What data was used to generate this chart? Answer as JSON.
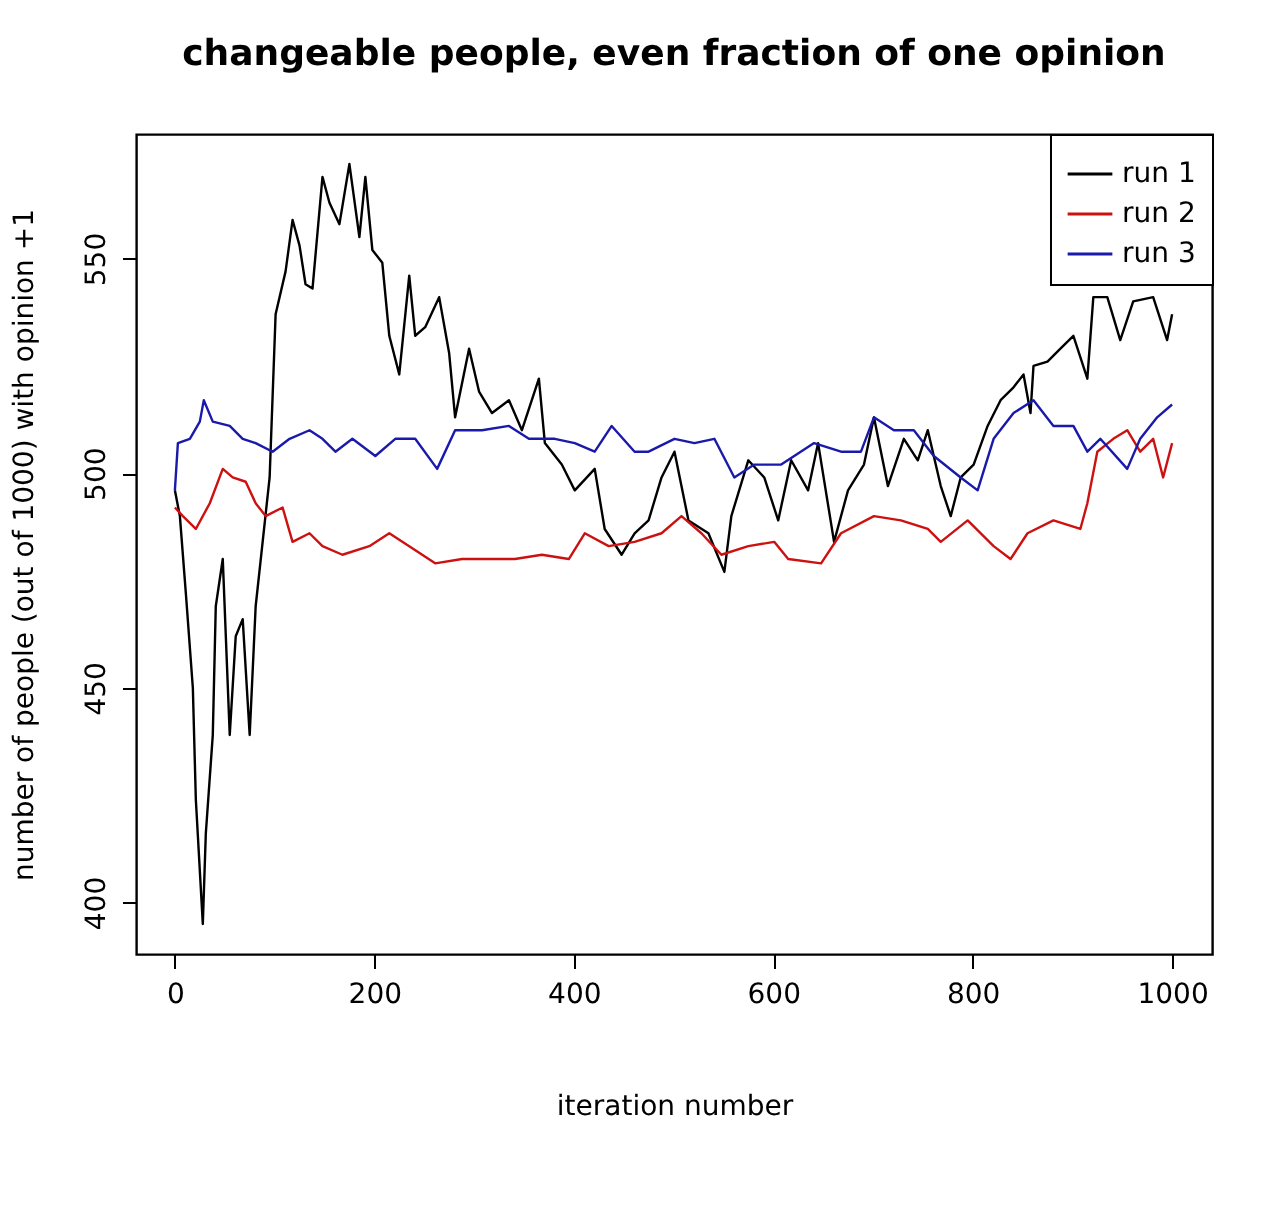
{
  "chart_data": {
    "type": "line",
    "title": "changeable people, even fraction of one opinion",
    "xlabel": "iteration number",
    "ylabel": "number of people (out of 1000) with opinion +1",
    "xlim": [
      -39,
      1040
    ],
    "ylim": [
      388,
      579
    ],
    "xticks": [
      0,
      200,
      400,
      600,
      800,
      1000
    ],
    "yticks": [
      400,
      450,
      500,
      550
    ],
    "grid": false,
    "legend": "top right",
    "marker": "none",
    "line_style": "solid",
    "series": [
      {
        "name": "run 1",
        "color": "#000000",
        "x": [
          0,
          5,
          11,
          18,
          21,
          28,
          31,
          38,
          41,
          48,
          55,
          61,
          68,
          75,
          81,
          88,
          95,
          101,
          111,
          118,
          125,
          131,
          138,
          148,
          155,
          165,
          175,
          185,
          191,
          198,
          208,
          215,
          225,
          235,
          241,
          251,
          265,
          275,
          281,
          295,
          305,
          318,
          335,
          348,
          365,
          371,
          388,
          401,
          421,
          431,
          448,
          461,
          475,
          488,
          501,
          515,
          535,
          551,
          558,
          575,
          591,
          605,
          618,
          635,
          645,
          661,
          675,
          691,
          701,
          715,
          731,
          745,
          755,
          768,
          778,
          788,
          801,
          815,
          828,
          841,
          851,
          858,
          861,
          875,
          888,
          901,
          915,
          921,
          935,
          948,
          961,
          981,
          995,
          1000
        ],
        "values": [
          496,
          490,
          472,
          450,
          424,
          395,
          416,
          439,
          469,
          480,
          439,
          462,
          466,
          439,
          469,
          484,
          499,
          537,
          547,
          559,
          553,
          544,
          543,
          569,
          563,
          558,
          572,
          555,
          569,
          552,
          549,
          532,
          523,
          546,
          532,
          534,
          541,
          528,
          513,
          529,
          519,
          514,
          517,
          510,
          522,
          507,
          502,
          496,
          501,
          487,
          481,
          486,
          489,
          499,
          505,
          489,
          486,
          477,
          490,
          503,
          499,
          489,
          503,
          496,
          507,
          484,
          496,
          502,
          513,
          497,
          508,
          503,
          510,
          497,
          490,
          499,
          502,
          511,
          517,
          520,
          523,
          514,
          525,
          526,
          529,
          532,
          522,
          541,
          541,
          531,
          540,
          541,
          531,
          537
        ]
      },
      {
        "name": "run 2",
        "color": "#cc1111",
        "x": [
          0,
          8,
          21,
          35,
          48,
          58,
          71,
          81,
          91,
          108,
          118,
          135,
          148,
          168,
          195,
          215,
          235,
          261,
          288,
          315,
          341,
          368,
          395,
          411,
          435,
          461,
          488,
          508,
          528,
          548,
          575,
          601,
          615,
          648,
          668,
          701,
          728,
          755,
          768,
          795,
          821,
          838,
          855,
          881,
          908,
          915,
          925,
          941,
          955,
          968,
          981,
          991,
          1000
        ],
        "values": [
          492,
          490,
          487,
          493,
          501,
          499,
          498,
          493,
          490,
          492,
          484,
          486,
          483,
          481,
          483,
          486,
          483,
          479,
          480,
          480,
          480,
          481,
          480,
          486,
          483,
          484,
          486,
          490,
          486,
          481,
          483,
          484,
          480,
          479,
          486,
          490,
          489,
          487,
          484,
          489,
          483,
          480,
          486,
          489,
          487,
          493,
          505,
          508,
          510,
          505,
          508,
          499,
          507
        ]
      },
      {
        "name": "run 3",
        "color": "#1a1aaa",
        "x": [
          0,
          3,
          15,
          25,
          29,
          38,
          55,
          68,
          81,
          98,
          115,
          135,
          148,
          161,
          178,
          201,
          221,
          241,
          263,
          281,
          308,
          335,
          355,
          381,
          401,
          421,
          438,
          461,
          475,
          501,
          521,
          541,
          561,
          581,
          608,
          641,
          668,
          688,
          701,
          721,
          741,
          761,
          788,
          805,
          821,
          841,
          861,
          881,
          901,
          915,
          928,
          955,
          968,
          985,
          1000
        ],
        "values": [
          496,
          507,
          508,
          512,
          517,
          512,
          511,
          508,
          507,
          505,
          508,
          510,
          508,
          505,
          508,
          504,
          508,
          508,
          501,
          510,
          510,
          511,
          508,
          508,
          507,
          505,
          511,
          505,
          505,
          508,
          507,
          508,
          499,
          502,
          502,
          507,
          505,
          505,
          513,
          510,
          510,
          504,
          499,
          496,
          508,
          514,
          517,
          511,
          511,
          505,
          508,
          501,
          508,
          513,
          516
        ]
      }
    ]
  }
}
